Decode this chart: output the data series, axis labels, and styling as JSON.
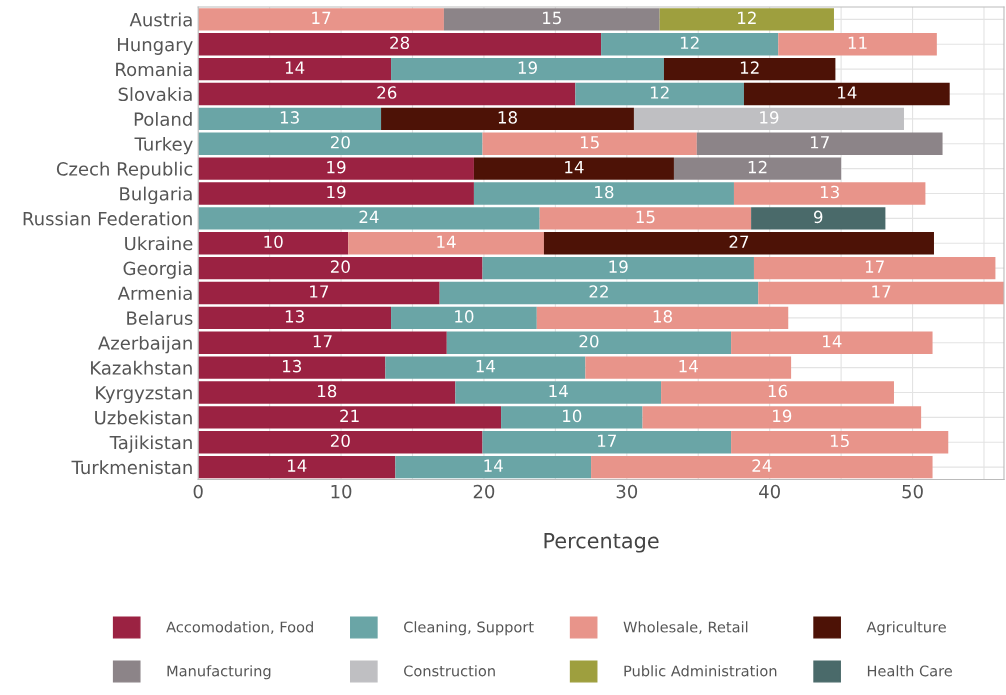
{
  "chart_data": {
    "type": "bar",
    "orientation": "horizontal",
    "stacked": true,
    "xlabel": "Percentage",
    "categories": [
      "Austria",
      "Hungary",
      "Romania",
      "Slovakia",
      "Poland",
      "Turkey",
      "Czech Republic",
      "Bulgaria",
      "Russian Federation",
      "Ukraine",
      "Georgia",
      "Armenia",
      "Belarus",
      "Azerbaijan",
      "Kazakhstan",
      "Kyrgyzstan",
      "Uzbekistan",
      "Tajikistan",
      "Turkmenistan"
    ],
    "xlim": [
      0,
      56.4
    ],
    "xticks": [
      0,
      {
        "value": 5,
        "label": null
      },
      10,
      {
        "value": 15,
        "label": null
      },
      20,
      {
        "value": 25,
        "label": null
      },
      30,
      {
        "value": 35,
        "label": null
      },
      40,
      {
        "value": 45,
        "label": null
      },
      50,
      {
        "value": 55,
        "label": null
      }
    ],
    "grid": true,
    "legend": "bottom",
    "series": [
      {
        "name": "Accomodation, Food",
        "color": "#9b2242",
        "values": [
          null,
          28.2,
          13.5,
          26.4,
          null,
          null,
          19.3,
          19.3,
          null,
          10.5,
          19.9,
          16.9,
          13.5,
          17.4,
          13.1,
          18.0,
          21.2,
          19.9,
          13.8
        ],
        "value_labels": [
          null,
          "28",
          "14",
          "26",
          null,
          null,
          "19",
          "19",
          null,
          "10",
          "20",
          "17",
          "13",
          "17",
          "13",
          "18",
          "21",
          "20",
          "14"
        ]
      },
      {
        "name": "Cleaning, Support",
        "color": "#6aa5a6",
        "values": [
          null,
          12.4,
          19.1,
          11.8,
          12.8,
          19.9,
          null,
          18.2,
          23.9,
          null,
          19.0,
          22.3,
          10.2,
          19.9,
          14.0,
          14.4,
          9.9,
          17.4,
          13.7
        ],
        "value_labels": [
          null,
          "12",
          "19",
          "12",
          "13",
          "20",
          null,
          "18",
          "24",
          null,
          "19",
          "22",
          "10",
          "20",
          "14",
          "14",
          "10",
          "17",
          "14"
        ]
      },
      {
        "name": "Wholesale, Retail",
        "color": "#e8948a",
        "values": [
          17.2,
          11.1,
          null,
          null,
          null,
          15.0,
          null,
          13.4,
          14.8,
          13.7,
          16.9,
          17.2,
          17.6,
          14.1,
          14.4,
          16.3,
          19.5,
          15.2,
          23.9
        ],
        "value_labels": [
          "17",
          "11",
          null,
          null,
          null,
          "15",
          null,
          "13",
          "15",
          "14",
          "17",
          "17",
          "18",
          "14",
          "14",
          "16",
          "19",
          "15",
          "24"
        ]
      },
      {
        "name": "Agriculture",
        "color": "#4d1206",
        "values": [
          null,
          null,
          12.0,
          14.4,
          17.7,
          null,
          14.0,
          null,
          null,
          27.3,
          null,
          null,
          null,
          null,
          null,
          null,
          null,
          null,
          null
        ],
        "value_labels": [
          null,
          null,
          "12",
          "14",
          "18",
          null,
          "14",
          null,
          null,
          "27",
          null,
          null,
          null,
          null,
          null,
          null,
          null,
          null,
          null
        ]
      },
      {
        "name": "Manufacturing",
        "color": "#8c8488",
        "values": [
          15.1,
          null,
          null,
          null,
          null,
          17.2,
          11.7,
          null,
          null,
          null,
          null,
          null,
          null,
          null,
          null,
          null,
          null,
          null,
          null
        ],
        "value_labels": [
          "15",
          null,
          null,
          null,
          null,
          "17",
          "12",
          null,
          null,
          null,
          null,
          null,
          null,
          null,
          null,
          null,
          null,
          null,
          null
        ]
      },
      {
        "name": "Construction",
        "color": "#bfbfc2",
        "values": [
          null,
          null,
          null,
          null,
          18.9,
          null,
          null,
          null,
          null,
          null,
          null,
          null,
          null,
          null,
          null,
          null,
          null,
          null,
          null
        ],
        "value_labels": [
          null,
          null,
          null,
          null,
          "19",
          null,
          null,
          null,
          null,
          null,
          null,
          null,
          null,
          null,
          null,
          null,
          null,
          null,
          null
        ]
      },
      {
        "name": "Public Administration",
        "color": "#9e9f3e",
        "values": [
          12.2,
          null,
          null,
          null,
          null,
          null,
          null,
          null,
          null,
          null,
          null,
          null,
          null,
          null,
          null,
          null,
          null,
          null,
          null
        ],
        "value_labels": [
          "12",
          null,
          null,
          null,
          null,
          null,
          null,
          null,
          null,
          null,
          null,
          null,
          null,
          null,
          null,
          null,
          null,
          null,
          null
        ]
      },
      {
        "name": "Health Care",
        "color": "#4a6a6a",
        "values": [
          null,
          null,
          null,
          null,
          null,
          null,
          null,
          null,
          9.4,
          null,
          null,
          null,
          null,
          null,
          null,
          null,
          null,
          null,
          null
        ],
        "value_labels": [
          null,
          null,
          null,
          null,
          null,
          null,
          null,
          null,
          "9",
          null,
          null,
          null,
          null,
          null,
          null,
          null,
          null,
          null,
          null
        ]
      }
    ]
  }
}
